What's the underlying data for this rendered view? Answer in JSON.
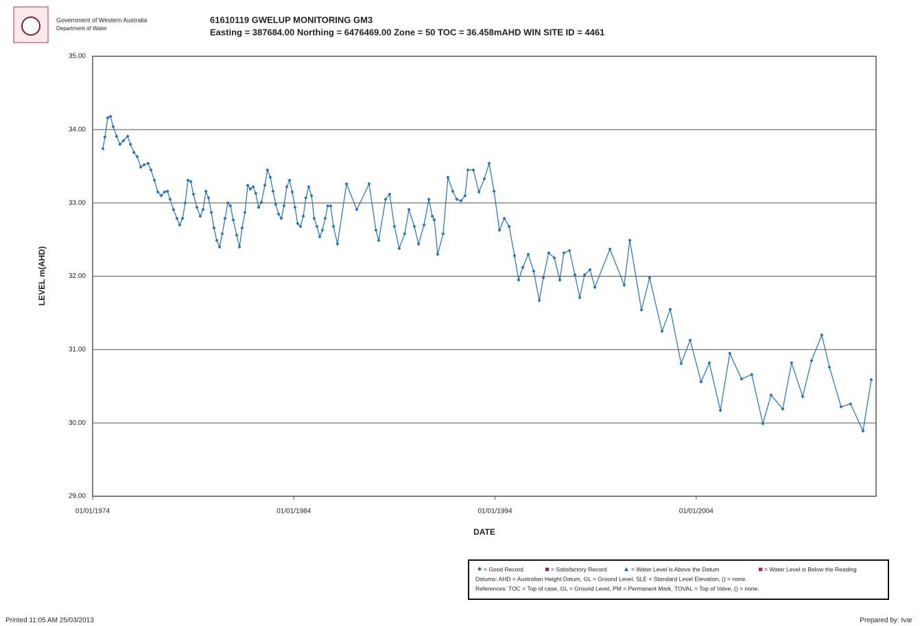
{
  "page": {
    "logo_line1": "Government of Western Australia",
    "logo_line2": "Department of Water",
    "legend": [
      "= Good Record",
      "= Satisfactory Record",
      "= Water Level is Above the Datum",
      "= Water Level is Below the Reading"
    ],
    "legend_line2": "Datums: AHD = Australian Height Datum, GL = Ground Level, SLE = Standard Level Elevation, () = none.",
    "legend_line3": "References: TOC = Top of case, GL = Ground Level, PM = Permanent Mark, TOVAL = Top of Valve, () = none.",
    "printed": "Printed 11:05 AM 25/03/2013",
    "prepared": "Prepared by: Ivar"
  },
  "chart_data": {
    "type": "line",
    "title": "61610119 GWELUP MONITORING GM3",
    "subtitle": "Easting = 387684.00 Northing = 6476469.00 Zone = 50 TOC = 36.458mAHD WIN SITE ID = 4461",
    "y_label": "LEVEL m(AHD)",
    "x_label": "DATE",
    "xlim": [
      1974,
      2012.94
    ],
    "xticks": [
      {
        "value": 1974,
        "label": "01/01/1974"
      },
      {
        "value": 1984,
        "label": "01/01/1984"
      },
      {
        "value": 1994,
        "label": "01/01/1994"
      },
      {
        "value": 2004,
        "label": "01/01/2004"
      }
    ],
    "ylim": [
      29,
      35
    ],
    "yticks": [
      {
        "value": 29,
        "label": "29.00"
      },
      {
        "value": 30,
        "label": "30.00"
      },
      {
        "value": 31,
        "label": "31.00"
      },
      {
        "value": 32,
        "label": "32.00"
      },
      {
        "value": 33,
        "label": "33.00"
      },
      {
        "value": 34,
        "label": "34.00"
      },
      {
        "value": 35,
        "label": "35.00"
      }
    ],
    "grid": true,
    "color": "#1f6fc1",
    "x": [
      1974.51,
      1974.61,
      1974.75,
      1974.89,
      1975.02,
      1975.19,
      1975.36,
      1975.53,
      1975.74,
      1975.88,
      1976.05,
      1976.22,
      1976.39,
      1976.56,
      1976.76,
      1976.9,
      1977.07,
      1977.24,
      1977.41,
      1977.58,
      1977.72,
      1977.85,
      1978.02,
      1978.19,
      1978.33,
      1978.47,
      1978.6,
      1978.74,
      1978.88,
      1979.01,
      1979.18,
      1979.35,
      1979.49,
      1979.63,
      1979.76,
      1979.9,
      1980.03,
      1980.17,
      1980.31,
      1980.44,
      1980.58,
      1980.72,
      1980.85,
      1980.99,
      1981.16,
      1981.3,
      1981.43,
      1981.57,
      1981.71,
      1981.84,
      1981.98,
      1982.11,
      1982.25,
      1982.39,
      1982.56,
      1982.69,
      1982.83,
      1982.97,
      1983.1,
      1983.24,
      1983.38,
      1983.51,
      1983.65,
      1983.79,
      1983.92,
      1984.06,
      1984.19,
      1984.33,
      1984.47,
      1984.6,
      1984.74,
      1984.88,
      1985.01,
      1985.15,
      1985.29,
      1985.42,
      1985.56,
      1985.69,
      1985.83,
      1985.97,
      1986.17,
      1986.62,
      1987.13,
      1987.74,
      1988.08,
      1988.22,
      1988.56,
      1988.76,
      1989.0,
      1989.24,
      1989.51,
      1989.72,
      1989.99,
      1990.2,
      1990.47,
      1990.71,
      1990.88,
      1990.98,
      1991.15,
      1991.42,
      1991.66,
      1991.9,
      1992.1,
      1992.31,
      1992.51,
      1992.65,
      1992.92,
      1993.2,
      1993.47,
      1993.71,
      1993.95,
      1994.22,
      1994.46,
      1994.7,
      1994.97,
      1995.17,
      1995.38,
      1995.65,
      1995.92,
      1996.2,
      1996.4,
      1996.67,
      1996.95,
      1997.22,
      1997.42,
      1997.7,
      1997.97,
      1998.21,
      1998.45,
      1998.72,
      1998.96,
      1999.71,
      2000.42,
      2000.7,
      2001.28,
      2001.68,
      2002.3,
      2002.71,
      2003.25,
      2003.7,
      2004.24,
      2004.65,
      2005.2,
      2005.67,
      2006.25,
      2006.76,
      2007.31,
      2007.72,
      2008.3,
      2008.74,
      2009.29,
      2009.73,
      2010.24,
      2010.62,
      2011.2,
      2011.67,
      2012.29,
      2012.7
    ],
    "values": [
      33.74,
      33.9,
      34.16,
      34.18,
      34.04,
      33.91,
      33.8,
      33.85,
      33.91,
      33.8,
      33.69,
      33.63,
      33.49,
      33.52,
      33.54,
      33.45,
      33.31,
      33.15,
      33.1,
      33.15,
      33.16,
      33.05,
      32.91,
      32.79,
      32.7,
      32.79,
      33.0,
      33.31,
      33.29,
      33.12,
      32.94,
      32.82,
      32.91,
      33.16,
      33.07,
      32.87,
      32.66,
      32.49,
      32.4,
      32.58,
      32.79,
      33.0,
      32.96,
      32.77,
      32.56,
      32.4,
      32.66,
      32.87,
      33.24,
      33.19,
      33.22,
      33.13,
      32.94,
      33.01,
      33.24,
      33.45,
      33.35,
      33.16,
      32.98,
      32.85,
      32.79,
      32.96,
      33.22,
      33.31,
      33.15,
      32.94,
      32.72,
      32.68,
      32.82,
      33.07,
      33.22,
      33.1,
      32.79,
      32.68,
      32.54,
      32.63,
      32.79,
      32.96,
      32.96,
      32.68,
      32.44,
      33.26,
      32.91,
      33.26,
      32.63,
      32.49,
      33.05,
      33.12,
      32.68,
      32.38,
      32.58,
      32.91,
      32.68,
      32.44,
      32.7,
      33.05,
      32.82,
      32.77,
      32.3,
      32.58,
      33.35,
      33.16,
      33.05,
      33.03,
      33.1,
      33.45,
      33.45,
      33.15,
      33.33,
      33.54,
      33.16,
      32.63,
      32.79,
      32.68,
      32.28,
      31.95,
      32.12,
      32.3,
      32.07,
      31.67,
      31.98,
      32.32,
      32.25,
      31.95,
      32.32,
      32.35,
      32.02,
      31.71,
      32.02,
      32.09,
      31.85,
      32.37,
      31.88,
      32.49,
      31.54,
      31.98,
      31.25,
      31.55,
      30.81,
      31.13,
      30.56,
      30.82,
      30.17,
      30.95,
      30.6,
      30.66,
      29.99,
      30.38,
      30.19,
      30.82,
      30.36,
      30.85,
      31.2,
      30.76,
      30.22,
      30.26,
      29.89,
      30.59
    ]
  }
}
